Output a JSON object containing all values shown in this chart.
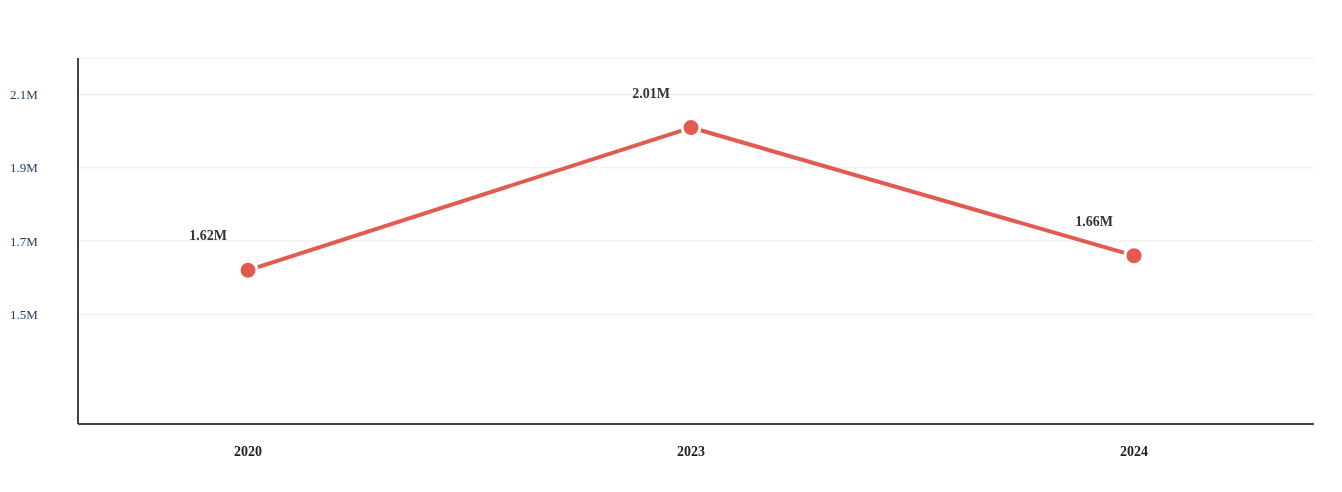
{
  "chart_data": {
    "type": "line",
    "categories": [
      "2020",
      "2023",
      "2024"
    ],
    "series": [
      {
        "color": "#e35b4f",
        "values": [
          1.62,
          2.01,
          1.66
        ]
      }
    ],
    "value_labels": [
      "1.62M",
      "2.01M",
      "1.66M"
    ],
    "ylim": [
      1.2,
      2.2
    ],
    "yticks": [
      {
        "value": 1.5,
        "label": "1.5M"
      },
      {
        "value": 1.7,
        "label": "1.7M"
      },
      {
        "value": 1.9,
        "label": "1.9M"
      },
      {
        "value": 2.1,
        "label": "2.1M"
      }
    ],
    "grid": "y",
    "marker": "circle",
    "line_style": "solid"
  }
}
